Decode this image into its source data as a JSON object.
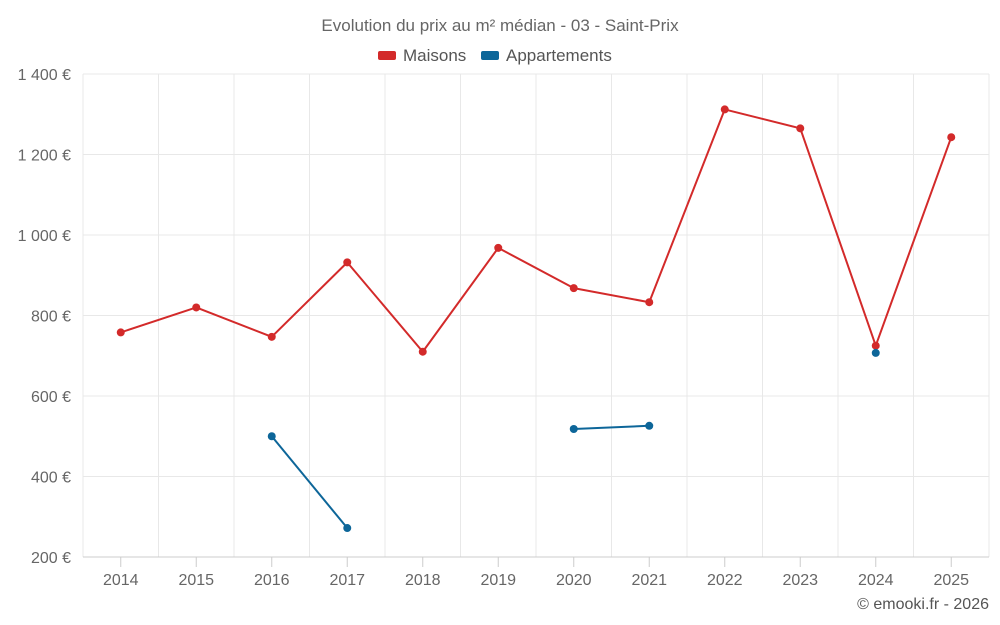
{
  "chart_data": {
    "type": "line",
    "title": "Evolution du prix au m² médian - 03 - Saint-Prix",
    "categories": [
      "2014",
      "2015",
      "2016",
      "2017",
      "2018",
      "2019",
      "2020",
      "2021",
      "2022",
      "2023",
      "2024",
      "2025"
    ],
    "ylim": [
      200,
      1400
    ],
    "yticks": [
      200,
      400,
      600,
      800,
      1000,
      1200,
      1400
    ],
    "ytick_labels": [
      "200 €",
      "400 €",
      "600 €",
      "800 €",
      "1 000 €",
      "1 200 €",
      "1 400 €"
    ],
    "grid": true,
    "legend_position": "top",
    "series": [
      {
        "name": "Maisons",
        "color": "#d32a2a",
        "values": [
          758,
          820,
          747,
          932,
          710,
          968,
          868,
          833,
          1312,
          1265,
          725,
          1243
        ]
      },
      {
        "name": "Appartements",
        "color": "#0d6699",
        "values": [
          null,
          null,
          500,
          272,
          null,
          null,
          518,
          526,
          null,
          null,
          707,
          null
        ]
      }
    ]
  },
  "credit": "© emooki.fr - 2026"
}
